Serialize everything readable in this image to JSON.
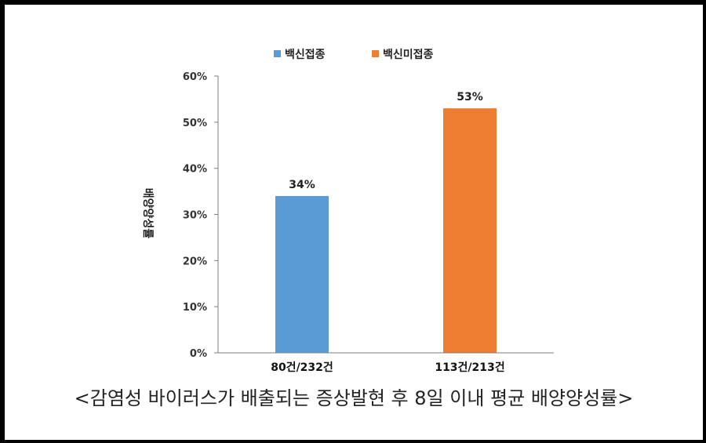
{
  "chart_data": {
    "type": "bar",
    "categories": [
      "80건/232건",
      "113건/213건"
    ],
    "series": [
      {
        "name": "백신접종",
        "values": [
          34,
          null
        ],
        "color": "#5b9bd5"
      },
      {
        "name": "백신미접종",
        "values": [
          null,
          53
        ],
        "color": "#ed7d31"
      }
    ],
    "data_labels": [
      "34%",
      "53%"
    ],
    "ylabel": "배양양성률",
    "ylim": [
      0,
      60
    ],
    "yticks": [
      "0%",
      "10%",
      "20%",
      "30%",
      "40%",
      "50%",
      "60%"
    ],
    "grid": false,
    "legend_position": "top-center"
  },
  "caption": "<감염성 바이러스가 배출되는 증상발현 후 8일 이내 평균 배양양성률>"
}
